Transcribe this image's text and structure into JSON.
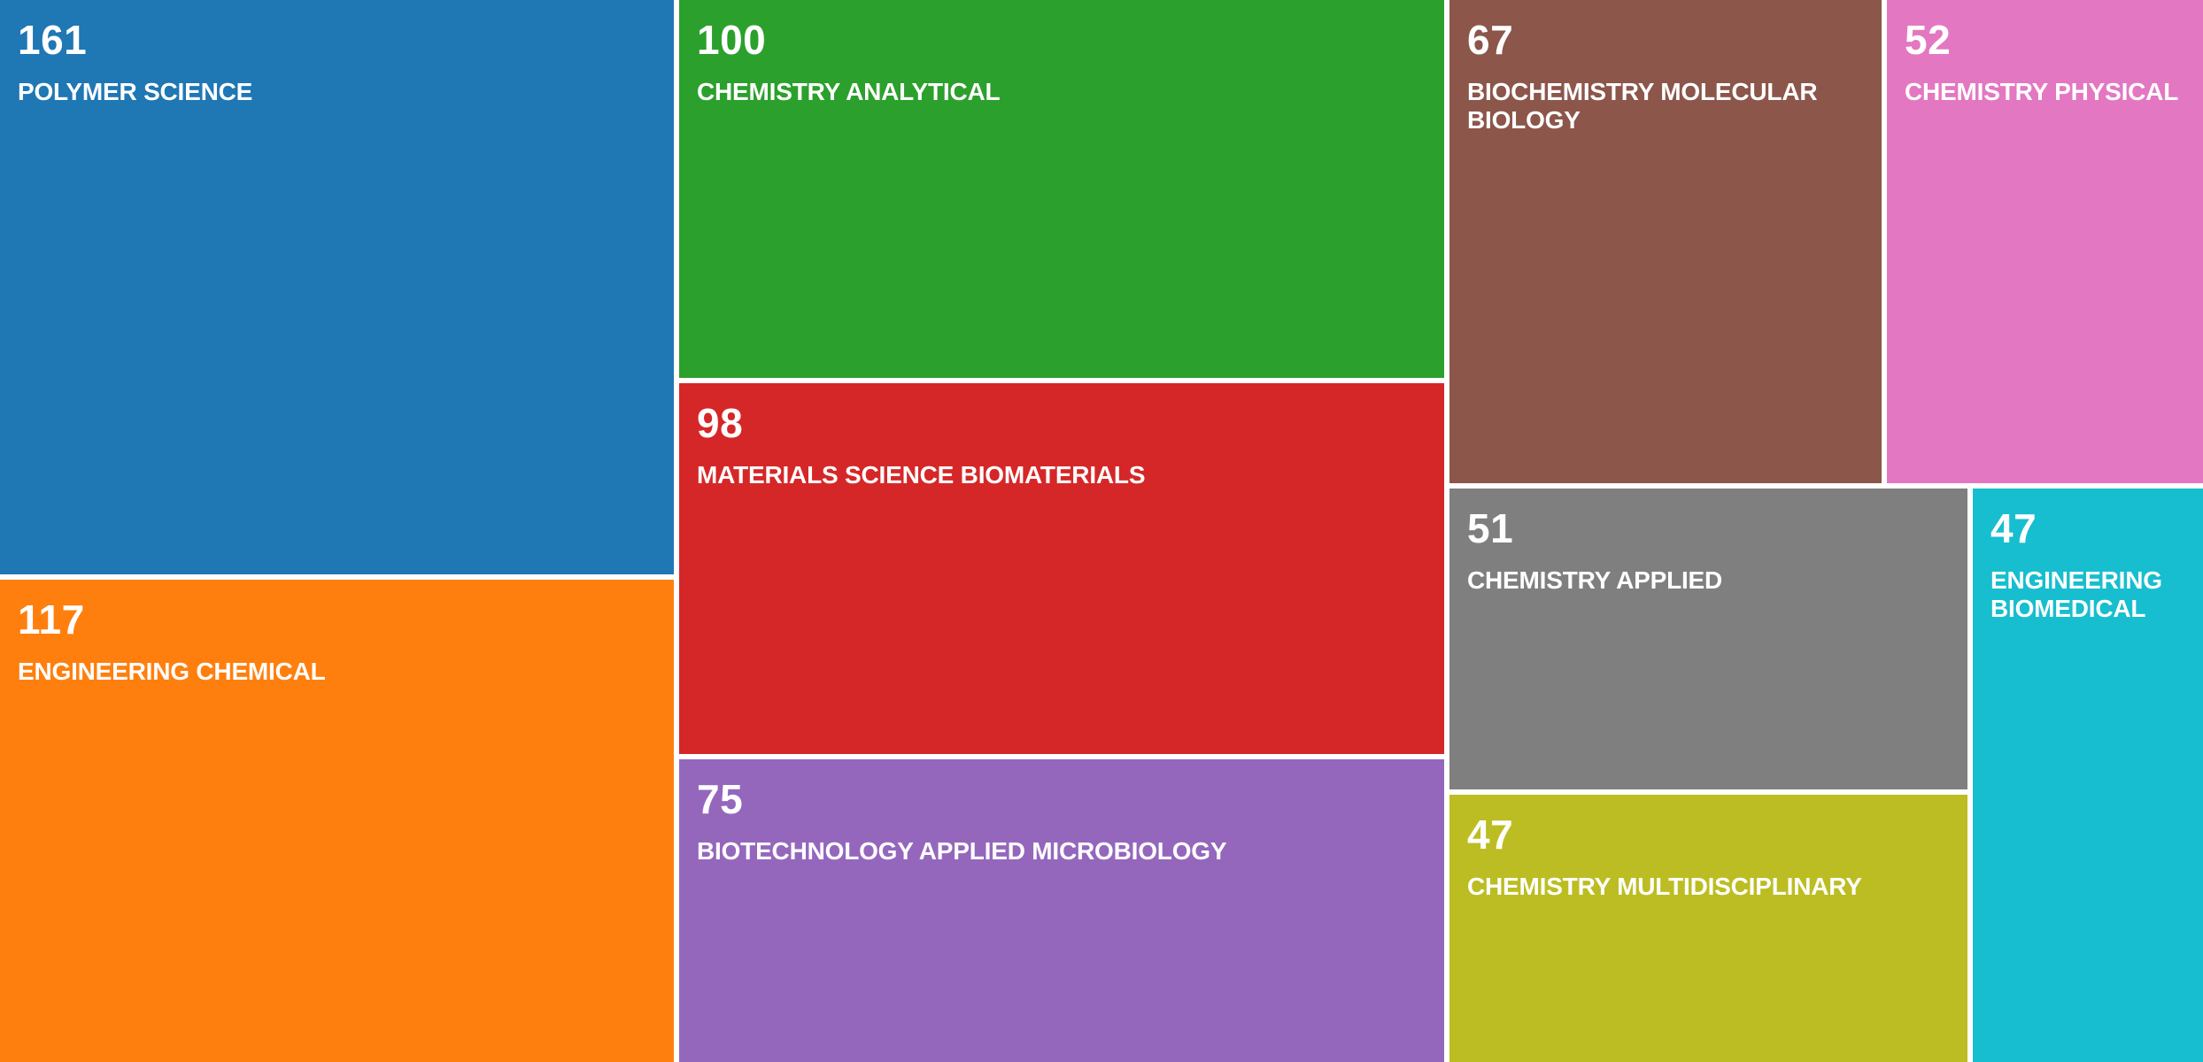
{
  "chart_data": {
    "type": "treemap",
    "title": "",
    "items": [
      {
        "label": "POLYMER SCIENCE",
        "value": 161,
        "color": "#1f77b4"
      },
      {
        "label": "ENGINEERING CHEMICAL",
        "value": 117,
        "color": "#ff7f0e"
      },
      {
        "label": "CHEMISTRY ANALYTICAL",
        "value": 100,
        "color": "#2ca02c"
      },
      {
        "label": "MATERIALS SCIENCE BIOMATERIALS",
        "value": 98,
        "color": "#d62728"
      },
      {
        "label": "BIOTECHNOLOGY APPLIED MICROBIOLOGY",
        "value": 75,
        "color": "#9467bd"
      },
      {
        "label": "BIOCHEMISTRY MOLECULAR BIOLOGY",
        "value": 67,
        "color": "#8c564b"
      },
      {
        "label": "CHEMISTRY PHYSICAL",
        "value": 52,
        "color": "#e377c2"
      },
      {
        "label": "CHEMISTRY APPLIED",
        "value": 51,
        "color": "#7f7f7f"
      },
      {
        "label": "CHEMISTRY MULTIDISCIPLINARY",
        "value": 47,
        "color": "#bcbd22"
      },
      {
        "label": "ENGINEERING BIOMEDICAL",
        "value": 47,
        "color": "#17becf"
      }
    ]
  }
}
